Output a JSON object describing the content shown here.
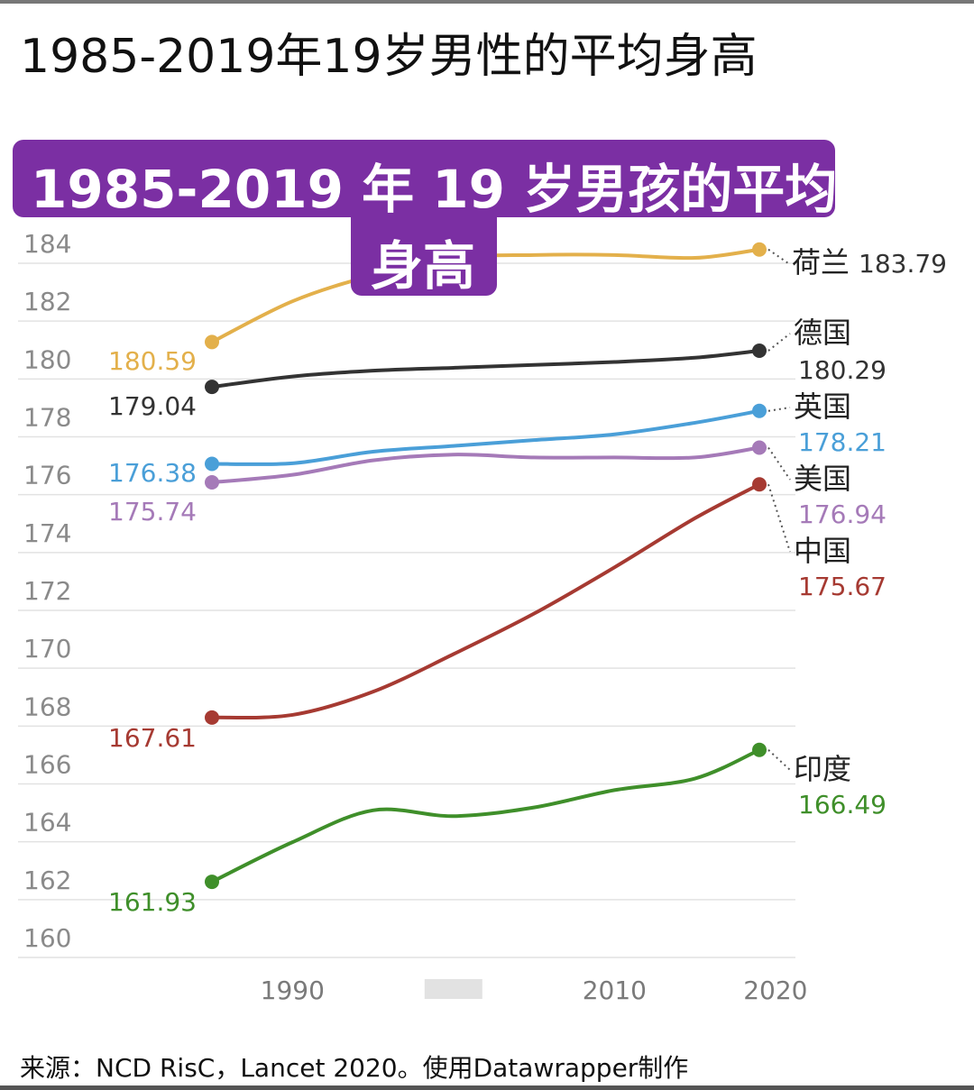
{
  "page_title": "1985-2019年19岁男性的平均身高",
  "banner": {
    "line1": "1985-2019 年 19 岁男孩的平均",
    "line2": "身高"
  },
  "footer": "来源：NCD RisC，Lancet 2020。使用Datawrapper制作",
  "chart_data": {
    "type": "line",
    "title": "1985-2019 年 19 岁男孩的平均身高",
    "xlabel": "",
    "ylabel": "",
    "ylim": [
      160,
      184
    ],
    "xlim": [
      1985,
      2020
    ],
    "x_ticks": [
      "1990",
      "",
      "2010",
      "2020"
    ],
    "y_ticks": [
      160,
      162,
      164,
      166,
      168,
      170,
      172,
      174,
      176,
      178,
      180,
      182,
      184
    ],
    "grid": true,
    "x": [
      1985,
      1990,
      1995,
      2000,
      2005,
      2010,
      2015,
      2019
    ],
    "series": [
      {
        "name": "荷兰",
        "color": "#e3b04b",
        "start_label": "180.59",
        "end_label": "183.79",
        "values": [
          180.59,
          182.0,
          182.9,
          183.5,
          183.6,
          183.6,
          183.5,
          183.79
        ]
      },
      {
        "name": "德国",
        "color": "#333333",
        "start_label": "179.04",
        "end_label": "180.29",
        "values": [
          179.04,
          179.4,
          179.6,
          179.7,
          179.8,
          179.9,
          180.05,
          180.29
        ]
      },
      {
        "name": "英国",
        "color": "#4a9fd8",
        "start_label": "176.38",
        "end_label": "178.21",
        "values": [
          176.38,
          176.4,
          176.8,
          177.0,
          177.2,
          177.4,
          177.8,
          178.21
        ]
      },
      {
        "name": "美国",
        "color": "#a57ab8",
        "start_label": "175.74",
        "end_label": "176.94",
        "values": [
          175.74,
          176.0,
          176.5,
          176.7,
          176.6,
          176.6,
          176.6,
          176.94
        ]
      },
      {
        "name": "中国",
        "color": "#a63a32",
        "start_label": "167.61",
        "end_label": "175.67",
        "values": [
          167.61,
          167.7,
          168.5,
          169.8,
          171.2,
          172.8,
          174.5,
          175.67
        ]
      },
      {
        "name": "印度",
        "color": "#3f8f2a",
        "start_label": "161.93",
        "end_label": "166.49",
        "values": [
          161.93,
          163.3,
          164.4,
          164.2,
          164.5,
          165.1,
          165.5,
          166.49
        ]
      }
    ]
  }
}
